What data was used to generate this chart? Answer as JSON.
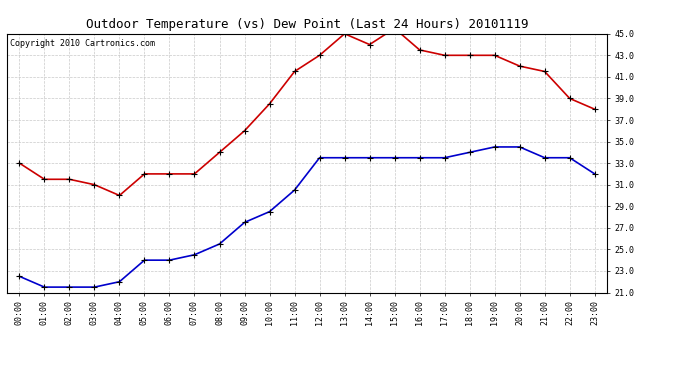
{
  "title": "Outdoor Temperature (vs) Dew Point (Last 24 Hours) 20101119",
  "copyright": "Copyright 2010 Cartronics.com",
  "hours": [
    "00:00",
    "01:00",
    "02:00",
    "03:00",
    "04:00",
    "05:00",
    "06:00",
    "07:00",
    "08:00",
    "09:00",
    "10:00",
    "11:00",
    "12:00",
    "13:00",
    "14:00",
    "15:00",
    "16:00",
    "17:00",
    "18:00",
    "19:00",
    "20:00",
    "21:00",
    "22:00",
    "23:00"
  ],
  "temp": [
    33.0,
    31.5,
    31.5,
    31.0,
    30.0,
    32.0,
    32.0,
    32.0,
    34.0,
    36.0,
    38.5,
    41.5,
    43.0,
    45.0,
    44.0,
    45.5,
    43.5,
    43.0,
    43.0,
    43.0,
    42.0,
    41.5,
    39.0,
    38.0
  ],
  "dew": [
    22.5,
    21.5,
    21.5,
    21.5,
    22.0,
    24.0,
    24.0,
    24.5,
    25.5,
    27.5,
    28.5,
    30.5,
    33.5,
    33.5,
    33.5,
    33.5,
    33.5,
    33.5,
    34.0,
    34.5,
    34.5,
    33.5,
    33.5,
    32.0
  ],
  "temp_color": "#cc0000",
  "dew_color": "#0000cc",
  "bg_color": "#ffffff",
  "grid_color": "#bbbbbb",
  "ylim": [
    21.0,
    45.0
  ],
  "yticks": [
    21.0,
    23.0,
    25.0,
    27.0,
    29.0,
    31.0,
    33.0,
    35.0,
    37.0,
    39.0,
    41.0,
    43.0,
    45.0
  ],
  "title_fontsize": 9,
  "tick_fontsize": 6,
  "copyright_fontsize": 6
}
